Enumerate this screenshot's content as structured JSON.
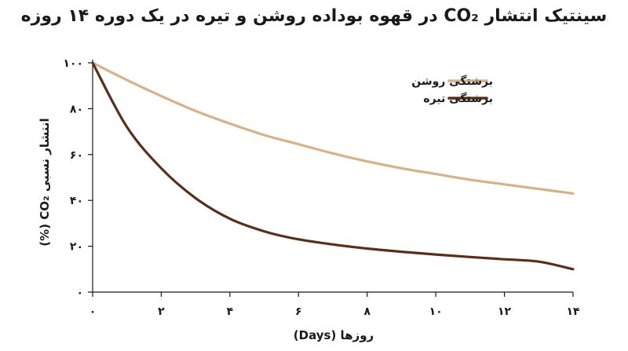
{
  "chart_data": {
    "type": "line",
    "title": "سینتیک انتشار CO₂ در قهوه بوداده روشن و تیره در یک دوره ۱۴ روزه",
    "xlabel": "روزها (Days)",
    "ylabel": "انتشار نسبی CO₂ (%)",
    "xlim": [
      0,
      14
    ],
    "ylim": [
      0,
      100
    ],
    "x_ticks": [
      {
        "value": 0,
        "label": "۰"
      },
      {
        "value": 2,
        "label": "۲"
      },
      {
        "value": 4,
        "label": "۴"
      },
      {
        "value": 6,
        "label": "۶"
      },
      {
        "value": 8,
        "label": "۸"
      },
      {
        "value": 10,
        "label": "۱۰"
      },
      {
        "value": 12,
        "label": "۱۲"
      },
      {
        "value": 14,
        "label": "۱۴"
      }
    ],
    "y_ticks": [
      {
        "value": 0,
        "label": "۰"
      },
      {
        "value": 20,
        "label": "۲۰"
      },
      {
        "value": 40,
        "label": "۴۰"
      },
      {
        "value": 60,
        "label": "۶۰"
      },
      {
        "value": 80,
        "label": "۸۰"
      },
      {
        "value": 100,
        "label": "۱۰۰"
      }
    ],
    "grid": false,
    "legend_position": "top-right",
    "series": [
      {
        "name": "برشتگی روشن",
        "color": "#d4b38a",
        "x": [
          0,
          1,
          2,
          3,
          4,
          5,
          6,
          7,
          8,
          9,
          10,
          11,
          12,
          13,
          14
        ],
        "y": [
          100,
          92.5,
          85.5,
          79,
          73.5,
          68.5,
          64.5,
          60.5,
          57,
          54,
          51.5,
          49,
          47,
          45,
          43
        ]
      },
      {
        "name": "برشتگی تیره",
        "color": "#5a2e1c",
        "x": [
          0,
          1,
          2,
          3,
          4,
          5,
          6,
          7,
          8,
          9,
          10,
          11,
          12,
          13,
          14
        ],
        "y": [
          100,
          72,
          54,
          41,
          32,
          26.5,
          23,
          20.8,
          19,
          17.6,
          16.4,
          15.3,
          14.3,
          13.3,
          10
        ]
      }
    ]
  }
}
